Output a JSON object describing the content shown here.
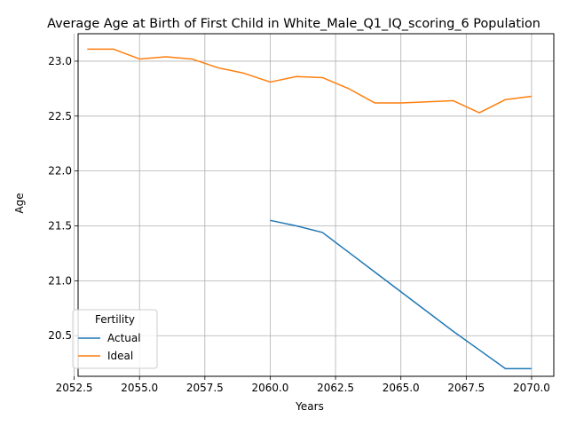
{
  "chart_data": {
    "type": "line",
    "title": "Average Age at Birth of First Child in White_Male_Q1_IQ_scoring_6 Population",
    "xlabel": "Years",
    "ylabel": "Age",
    "xlim": [
      2052.65,
      2070.85
    ],
    "ylim": [
      20.13,
      23.25
    ],
    "xticks": [
      "2052.5",
      "2055.0",
      "2057.5",
      "2060.0",
      "2062.5",
      "2065.0",
      "2067.5",
      "2070.0"
    ],
    "yticks": [
      "20.5",
      "21.0",
      "21.5",
      "22.0",
      "22.5",
      "23.0"
    ],
    "grid": true,
    "legend": {
      "title": "Fertility",
      "placement": "lower-left"
    },
    "series": [
      {
        "name": "Actual",
        "color": "#1f77b4",
        "x": [
          2060,
          2061,
          2062,
          2063,
          2064,
          2065,
          2066,
          2067,
          2068,
          2069,
          2070
        ],
        "y": [
          21.55,
          21.5,
          21.44,
          21.26,
          21.08,
          20.9,
          20.72,
          20.54,
          20.37,
          20.2,
          20.2
        ]
      },
      {
        "name": "Ideal",
        "color": "#ff7f0e",
        "x": [
          2053,
          2054,
          2055,
          2056,
          2057,
          2058,
          2059,
          2060,
          2061,
          2062,
          2063,
          2064,
          2065,
          2066,
          2067,
          2068,
          2069,
          2070
        ],
        "y": [
          23.11,
          23.11,
          23.02,
          23.04,
          23.02,
          22.94,
          22.89,
          22.81,
          22.86,
          22.85,
          22.75,
          22.62,
          22.62,
          22.63,
          22.64,
          22.53,
          22.65,
          22.68
        ]
      }
    ]
  }
}
